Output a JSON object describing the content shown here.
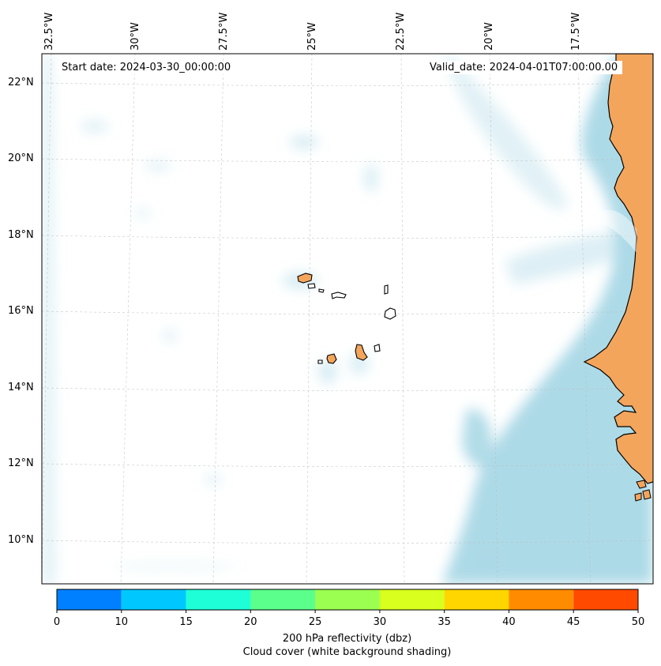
{
  "map": {
    "start_date_label": "Start date: 2024-03-30_00:00:00",
    "valid_date_label": "Valid_date: 2024-04-01T07:00:00.00",
    "lat_labels": [
      "22°N",
      "20°N",
      "18°N",
      "16°N",
      "14°N",
      "12°N",
      "10°N"
    ],
    "lon_labels": [
      "32.5°W",
      "30°W",
      "27.5°W",
      "25°W",
      "22.5°W",
      "20°W",
      "17.5°W"
    ],
    "land_color": "#f4a55c",
    "cloud_color": "#a9d8e6",
    "coastline_color": "#000000"
  },
  "colorbar": {
    "ticks": [
      "0",
      "10",
      "15",
      "20",
      "25",
      "30",
      "35",
      "40",
      "45",
      "50"
    ],
    "colors": [
      "#0080ff",
      "#00c8ff",
      "#1effd8",
      "#5aff8c",
      "#9aff50",
      "#d8ff1e",
      "#ffd600",
      "#ff8c00",
      "#ff4a00"
    ],
    "label_line1": "200 hPa reflectivity (dbz)",
    "label_line2": "Cloud cover (white background shading)"
  }
}
